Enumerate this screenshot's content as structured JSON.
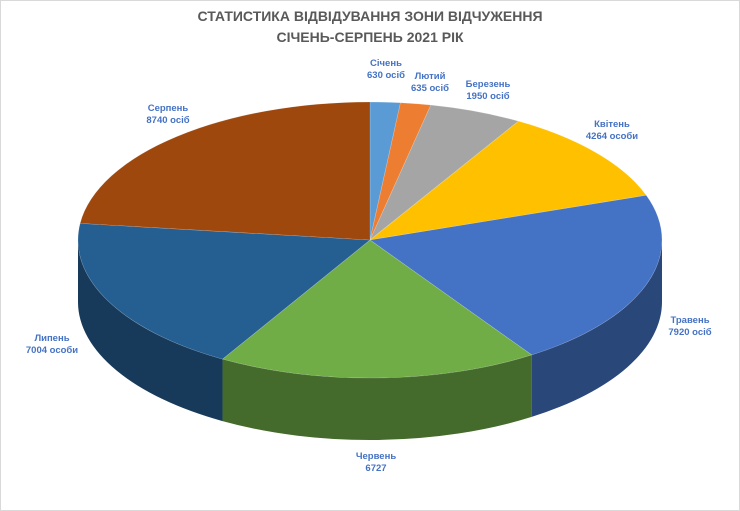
{
  "chart_data": {
    "type": "pie3d",
    "title": "СТАТИСТИКА ВІДВІДУВАННЯ ЗОНИ ВІДЧУЖЕННЯ",
    "subtitle": "СІЧЕНЬ-СЕРПЕНЬ 2021 РІК",
    "categories": [
      "Січень",
      "Лютий",
      "Березень",
      "Квітень",
      "Травень",
      "Червень",
      "Липень",
      "Серпень"
    ],
    "values": [
      630,
      635,
      1950,
      4264,
      7920,
      6727,
      7004,
      8740
    ],
    "value_labels": [
      "630 осіб",
      "635 осіб",
      "1950 осіб",
      "4264 особи",
      "7920 осіб",
      "6727",
      "7004 особи",
      "8740 осіб"
    ],
    "colors": [
      "#5b9bd5",
      "#ed7d31",
      "#a5a5a5",
      "#ffc000",
      "#4472c4",
      "#70ad47",
      "#255e91",
      "#9e480e"
    ]
  }
}
